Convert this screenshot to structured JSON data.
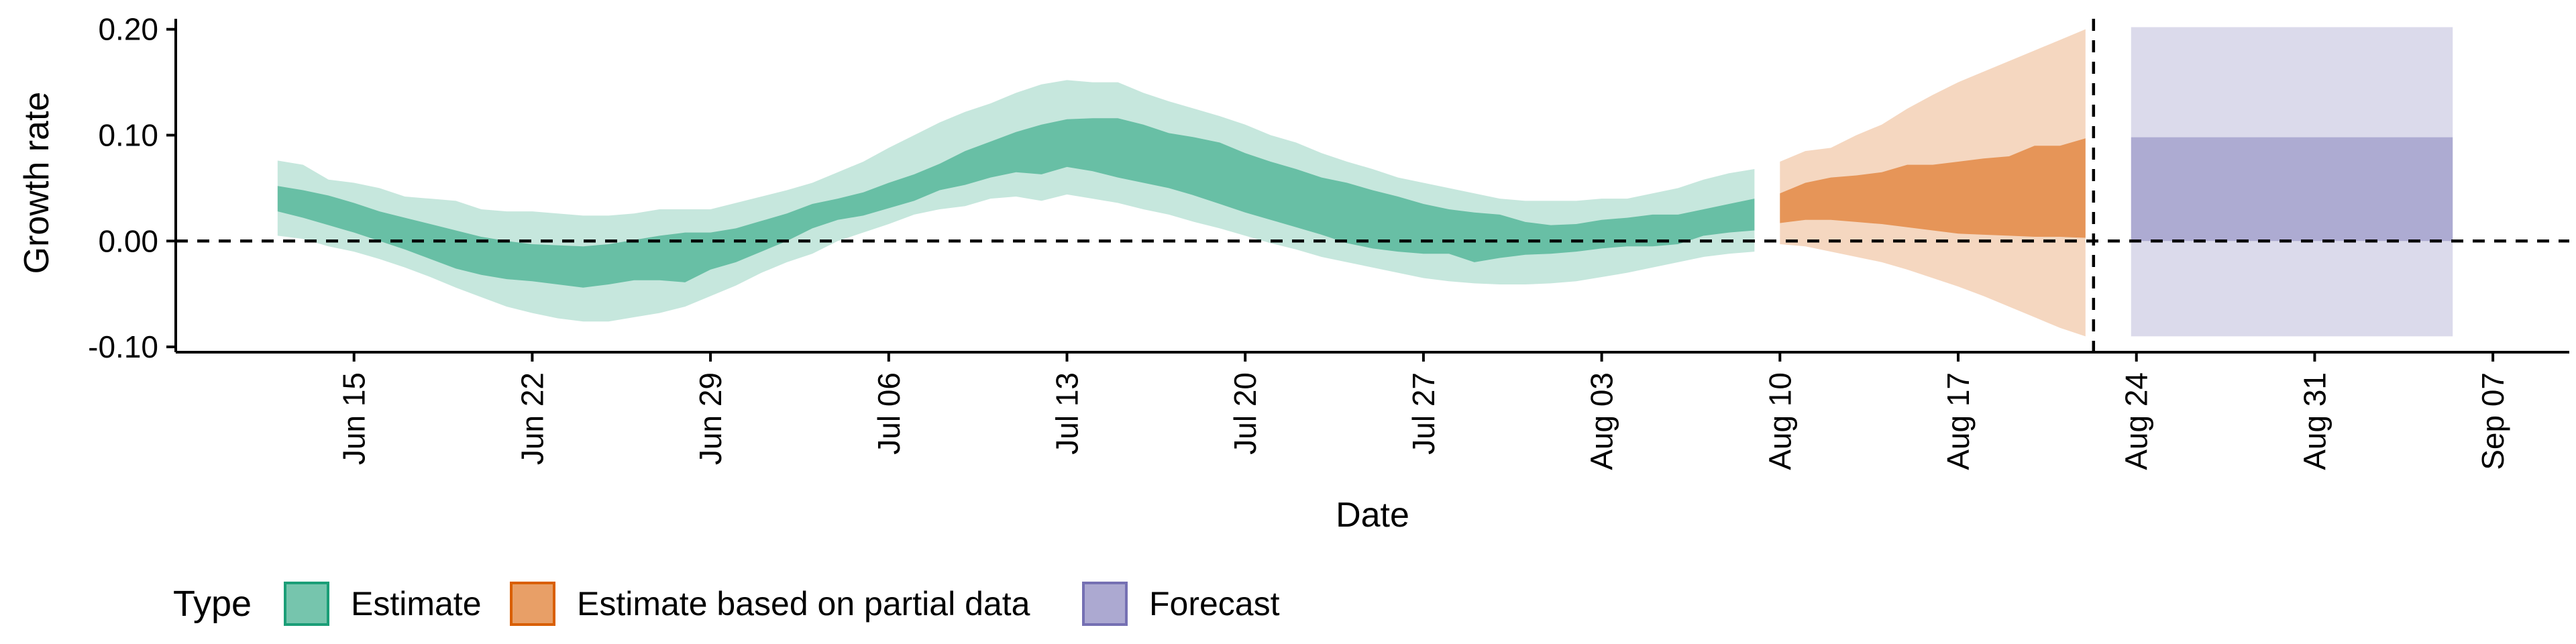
{
  "chart_data": {
    "type": "area",
    "xlabel": "Date",
    "ylabel": "Growth rate",
    "ylim": [
      -0.105,
      0.215
    ],
    "yticks": [
      {
        "value": -0.1,
        "label": "-0.10"
      },
      {
        "value": 0.0,
        "label": "0.00"
      },
      {
        "value": 0.1,
        "label": "0.10"
      },
      {
        "value": 0.2,
        "label": "0.20"
      }
    ],
    "xlim": [
      "2020-06-08",
      "2020-09-10"
    ],
    "xticks": [
      {
        "date": "2020-06-15",
        "label": "Jun 15"
      },
      {
        "date": "2020-06-22",
        "label": "Jun 22"
      },
      {
        "date": "2020-06-29",
        "label": "Jun 29"
      },
      {
        "date": "2020-07-06",
        "label": "Jul 06"
      },
      {
        "date": "2020-07-13",
        "label": "Jul 13"
      },
      {
        "date": "2020-07-20",
        "label": "Jul 20"
      },
      {
        "date": "2020-07-27",
        "label": "Jul 27"
      },
      {
        "date": "2020-08-03",
        "label": "Aug 03"
      },
      {
        "date": "2020-08-10",
        "label": "Aug 10"
      },
      {
        "date": "2020-08-17",
        "label": "Aug 17"
      },
      {
        "date": "2020-08-24",
        "label": "Aug 24"
      },
      {
        "date": "2020-08-31",
        "label": "Aug 31"
      },
      {
        "date": "2020-09-07",
        "label": "Sep 07"
      }
    ],
    "reference_lines": {
      "horizontal_y": 0,
      "vertical_date": "2020-08-22"
    },
    "grid": false,
    "legend": {
      "position": "bottom",
      "title": "Type",
      "entries": [
        {
          "label": "Estimate",
          "color": "#1b9e77"
        },
        {
          "label": "Estimate based on partial data",
          "color": "#d95f02"
        },
        {
          "label": "Forecast",
          "color": "#7570b3"
        }
      ]
    },
    "series": [
      {
        "type_label": "Estimate",
        "color": "#1b9e77",
        "dates": [
          "2020-06-12",
          "2020-06-13",
          "2020-06-14",
          "2020-06-15",
          "2020-06-16",
          "2020-06-17",
          "2020-06-18",
          "2020-06-19",
          "2020-06-20",
          "2020-06-21",
          "2020-06-22",
          "2020-06-23",
          "2020-06-24",
          "2020-06-25",
          "2020-06-26",
          "2020-06-27",
          "2020-06-28",
          "2020-06-29",
          "2020-06-30",
          "2020-07-01",
          "2020-07-02",
          "2020-07-03",
          "2020-07-04",
          "2020-07-05",
          "2020-07-06",
          "2020-07-07",
          "2020-07-08",
          "2020-07-09",
          "2020-07-10",
          "2020-07-11",
          "2020-07-12",
          "2020-07-13",
          "2020-07-14",
          "2020-07-15",
          "2020-07-16",
          "2020-07-17",
          "2020-07-18",
          "2020-07-19",
          "2020-07-20",
          "2020-07-21",
          "2020-07-22",
          "2020-07-23",
          "2020-07-24",
          "2020-07-25",
          "2020-07-26",
          "2020-07-27",
          "2020-07-28",
          "2020-07-29",
          "2020-07-30",
          "2020-07-31",
          "2020-08-01",
          "2020-08-02",
          "2020-08-03",
          "2020-08-04",
          "2020-08-05",
          "2020-08-06",
          "2020-08-07",
          "2020-08-08",
          "2020-08-09"
        ],
        "lower_90": [
          0.005,
          0.002,
          -0.005,
          -0.01,
          -0.017,
          -0.025,
          -0.034,
          -0.044,
          -0.053,
          -0.062,
          -0.068,
          -0.073,
          -0.076,
          -0.076,
          -0.072,
          -0.068,
          -0.062,
          -0.052,
          -0.042,
          -0.03,
          -0.02,
          -0.012,
          0.0,
          0.008,
          0.016,
          0.025,
          0.03,
          0.033,
          0.04,
          0.042,
          0.038,
          0.044,
          0.04,
          0.036,
          0.03,
          0.025,
          0.018,
          0.012,
          0.005,
          -0.002,
          -0.008,
          -0.015,
          -0.02,
          -0.025,
          -0.03,
          -0.035,
          -0.038,
          -0.04,
          -0.041,
          -0.041,
          -0.04,
          -0.038,
          -0.034,
          -0.03,
          -0.025,
          -0.02,
          -0.015,
          -0.012,
          -0.01
        ],
        "lower_50": [
          0.028,
          0.022,
          0.015,
          0.008,
          0.0,
          -0.008,
          -0.017,
          -0.026,
          -0.032,
          -0.036,
          -0.038,
          -0.041,
          -0.044,
          -0.041,
          -0.037,
          -0.037,
          -0.039,
          -0.027,
          -0.02,
          -0.01,
          0.0,
          0.012,
          0.02,
          0.024,
          0.031,
          0.038,
          0.048,
          0.053,
          0.06,
          0.065,
          0.063,
          0.07,
          0.066,
          0.06,
          0.055,
          0.05,
          0.043,
          0.035,
          0.027,
          0.02,
          0.013,
          0.006,
          -0.002,
          -0.007,
          -0.01,
          -0.012,
          -0.012,
          -0.02,
          -0.016,
          -0.013,
          -0.012,
          -0.01,
          -0.007,
          -0.005,
          -0.005,
          -0.003,
          0.005,
          0.008,
          0.01
        ],
        "upper_50": [
          0.052,
          0.048,
          0.043,
          0.036,
          0.028,
          0.022,
          0.016,
          0.01,
          0.004,
          0.0,
          -0.003,
          -0.004,
          -0.005,
          -0.003,
          0.001,
          0.005,
          0.008,
          0.008,
          0.012,
          0.019,
          0.026,
          0.035,
          0.04,
          0.046,
          0.055,
          0.063,
          0.073,
          0.085,
          0.094,
          0.103,
          0.11,
          0.115,
          0.116,
          0.116,
          0.11,
          0.102,
          0.098,
          0.093,
          0.083,
          0.075,
          0.068,
          0.06,
          0.055,
          0.048,
          0.042,
          0.035,
          0.03,
          0.027,
          0.025,
          0.018,
          0.015,
          0.016,
          0.02,
          0.022,
          0.025,
          0.025,
          0.03,
          0.035,
          0.04
        ],
        "upper_90": [
          0.076,
          0.072,
          0.058,
          0.055,
          0.05,
          0.042,
          0.04,
          0.038,
          0.03,
          0.028,
          0.028,
          0.026,
          0.024,
          0.024,
          0.026,
          0.03,
          0.03,
          0.03,
          0.036,
          0.042,
          0.048,
          0.055,
          0.065,
          0.075,
          0.088,
          0.1,
          0.112,
          0.122,
          0.13,
          0.14,
          0.148,
          0.152,
          0.15,
          0.15,
          0.14,
          0.132,
          0.125,
          0.118,
          0.11,
          0.1,
          0.093,
          0.083,
          0.075,
          0.068,
          0.06,
          0.055,
          0.05,
          0.045,
          0.04,
          0.038,
          0.038,
          0.038,
          0.04,
          0.04,
          0.045,
          0.05,
          0.058,
          0.064,
          0.068
        ]
      },
      {
        "type_label": "Estimate based on partial data",
        "color": "#d95f02",
        "dates": [
          "2020-08-10",
          "2020-08-11",
          "2020-08-12",
          "2020-08-13",
          "2020-08-14",
          "2020-08-15",
          "2020-08-16",
          "2020-08-17",
          "2020-08-18",
          "2020-08-19",
          "2020-08-20",
          "2020-08-21",
          "2020-08-22"
        ],
        "lower_90": [
          -0.003,
          -0.005,
          -0.01,
          -0.015,
          -0.02,
          -0.027,
          -0.035,
          -0.043,
          -0.052,
          -0.062,
          -0.072,
          -0.082,
          -0.09
        ],
        "lower_50": [
          0.017,
          0.02,
          0.02,
          0.018,
          0.016,
          0.013,
          0.01,
          0.007,
          0.006,
          0.005,
          0.004,
          0.004,
          0.003
        ],
        "upper_50": [
          0.045,
          0.055,
          0.06,
          0.062,
          0.065,
          0.072,
          0.072,
          0.075,
          0.078,
          0.08,
          0.09,
          0.09,
          0.097
        ],
        "upper_90": [
          0.075,
          0.085,
          0.088,
          0.1,
          0.11,
          0.125,
          0.138,
          0.15,
          0.16,
          0.17,
          0.18,
          0.19,
          0.2
        ]
      },
      {
        "type_label": "Forecast",
        "color": "#7570b3",
        "dates": [
          "2020-08-23",
          "2020-09-05"
        ],
        "lower_90": [
          -0.09,
          -0.09
        ],
        "lower_50": [
          0.0,
          0.0
        ],
        "upper_50": [
          0.098,
          0.098
        ],
        "upper_90": [
          0.202,
          0.202
        ]
      }
    ]
  }
}
